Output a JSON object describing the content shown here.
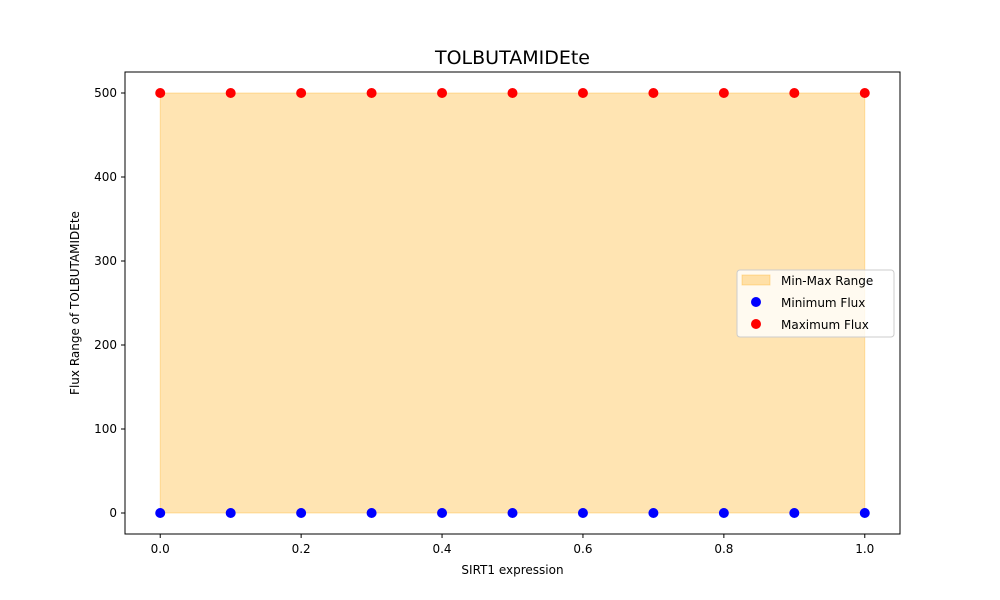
{
  "chart_data": {
    "type": "scatter",
    "title": "TOLBUTAMIDEte",
    "xlabel": "SIRT1 expression",
    "ylabel": "Flux Range of TOLBUTAMIDEte",
    "xlim": [
      -0.05,
      1.05
    ],
    "ylim": [
      -25,
      525
    ],
    "x_ticks": [
      0.0,
      0.2,
      0.4,
      0.6,
      0.8,
      1.0
    ],
    "x_tick_labels": [
      "0.0",
      "0.2",
      "0.4",
      "0.6",
      "0.8",
      "1.0"
    ],
    "y_ticks": [
      0,
      100,
      200,
      300,
      400,
      500
    ],
    "y_tick_labels": [
      "0",
      "100",
      "200",
      "300",
      "400",
      "500"
    ],
    "x": [
      0.0,
      0.1,
      0.2,
      0.3,
      0.4,
      0.5,
      0.6,
      0.7,
      0.8,
      0.9,
      1.0
    ],
    "series": [
      {
        "name": "Minimum Flux",
        "values": [
          0,
          0,
          0,
          0,
          0,
          0,
          0,
          0,
          0,
          0,
          0
        ],
        "color": "#0000ff"
      },
      {
        "name": "Maximum Flux",
        "values": [
          500,
          500,
          500,
          500,
          500,
          500,
          500,
          500,
          500,
          500,
          500
        ],
        "color": "#ff0000"
      }
    ],
    "fill": {
      "name": "Min-Max Range",
      "color": "#ffa500",
      "opacity": 0.3
    },
    "grid": false,
    "legend_position": "center-right"
  }
}
